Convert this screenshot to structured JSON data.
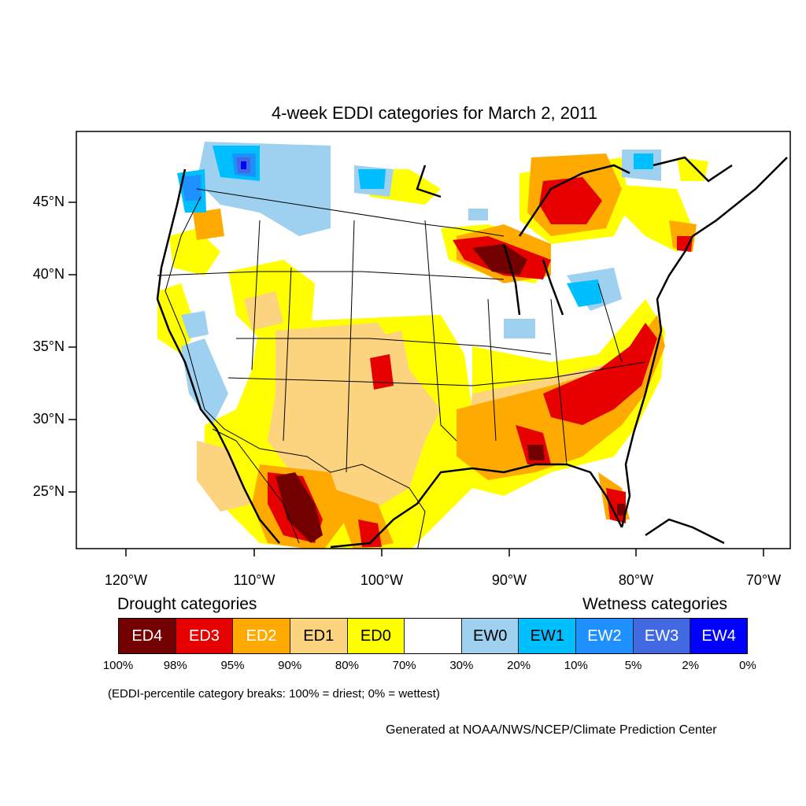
{
  "title": "4-week EDDI categories for March 2, 2011",
  "lat_labels": [
    "45°N",
    "40°N",
    "35°N",
    "30°N",
    "25°N"
  ],
  "lon_labels": [
    "120°W",
    "110°W",
    "100°W",
    "90°W",
    "80°W",
    "70°W"
  ],
  "legend": {
    "drought_heading": "Drought categories",
    "wetness_heading": "Wetness categories",
    "categories": [
      {
        "label": "ED4",
        "color": "#730000",
        "text_color": "#ffffff"
      },
      {
        "label": "ED3",
        "color": "#e60000",
        "text_color": "#ffffff"
      },
      {
        "label": "ED2",
        "color": "#ffaa00",
        "text_color": "#ffffff"
      },
      {
        "label": "ED1",
        "color": "#fcd37f",
        "text_color": "#000000"
      },
      {
        "label": "ED0",
        "color": "#ffff00",
        "text_color": "#000000"
      },
      {
        "label": "",
        "color": "#ffffff",
        "text_color": "#000000"
      },
      {
        "label": "EW0",
        "color": "#9ed0f0",
        "text_color": "#000000"
      },
      {
        "label": "EW1",
        "color": "#00bfff",
        "text_color": "#000000"
      },
      {
        "label": "EW2",
        "color": "#1e90ff",
        "text_color": "#ffffff"
      },
      {
        "label": "EW3",
        "color": "#4169e1",
        "text_color": "#ffffff"
      },
      {
        "label": "EW4",
        "color": "#0000ff",
        "text_color": "#ffffff"
      }
    ],
    "breaks": [
      "100%",
      "98%",
      "95%",
      "90%",
      "80%",
      "70%",
      "30%",
      "20%",
      "10%",
      "5%",
      "2%",
      "0%"
    ]
  },
  "note": "(EDDI-percentile category breaks: 100% = driest; 0% = wettest)",
  "credit": "Generated at NOAA/NWS/NCEP/Climate Prediction Center"
}
